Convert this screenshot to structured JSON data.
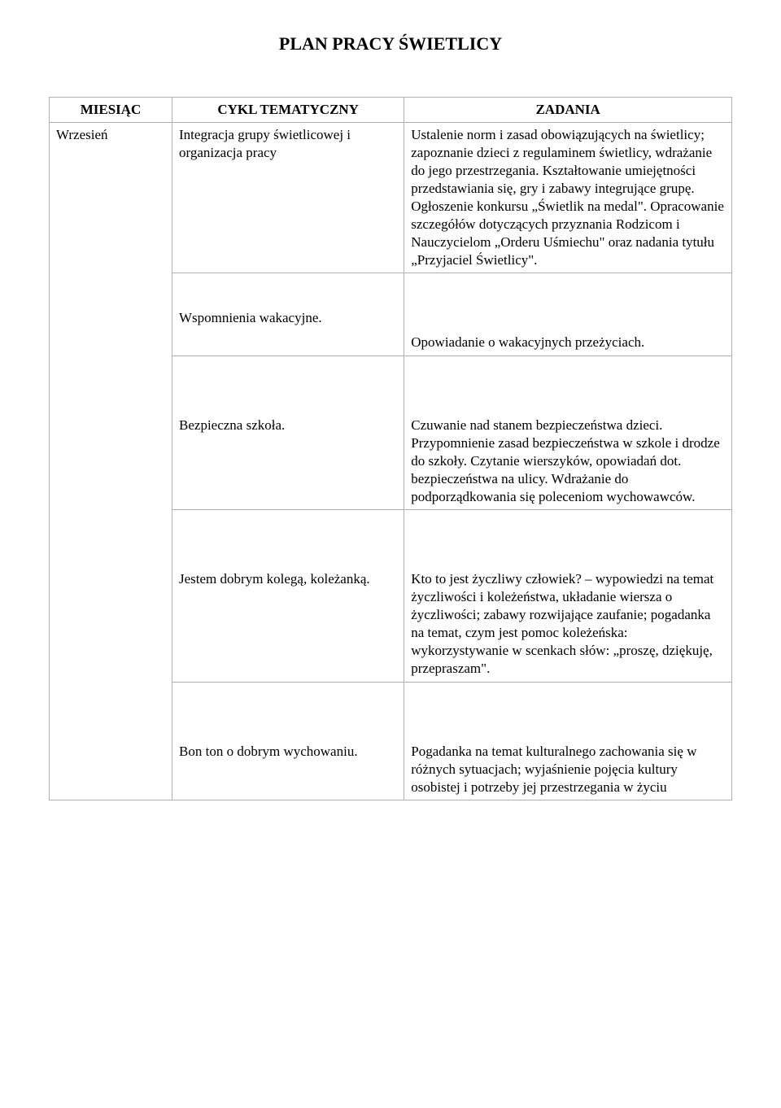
{
  "title": "PLAN PRACY ŚWIETLICY",
  "headers": {
    "col1": "MIESIĄC",
    "col2": "CYKL TEMATYCZNY",
    "col3": "ZADANIA"
  },
  "month": "Wrzesień",
  "rows": [
    {
      "cycle": "Integracja grupy świetlicowej i organizacja pracy",
      "tasks": "Ustalenie norm i zasad obowiązujących na świetlicy; zapoznanie dzieci z regulaminem świetlicy, wdrażanie do jego przestrzegania.  Kształtowanie umiejętności przedstawiania się, gry i zabawy integrujące grupę. Ogłoszenie konkursu „Świetlik na medal\". Opracowanie szczegółów dotyczących przyznania Rodzicom i Nauczycielom „Orderu Uśmiechu\" oraz nadania tytułu „Przyjaciel Świetlicy\"."
    },
    {
      "cycle": "Wspomnienia wakacyjne.",
      "tasks": "Opowiadanie o wakacyjnych przeżyciach."
    },
    {
      "cycle": "Bezpieczna szkoła.",
      "tasks": "Czuwanie nad stanem bezpieczeństwa dzieci. Przypomnienie zasad bezpieczeństwa w szkole i drodze do szkoły. Czytanie wierszyków, opowiadań dot. bezpieczeństwa na ulicy. Wdrażanie do podporządkowania się poleceniom wychowawców."
    },
    {
      "cycle": "Jestem dobrym kolegą, koleżanką.",
      "tasks": "Kto to jest życzliwy człowiek? – wypowiedzi na temat życzliwości i koleżeństwa, układanie wiersza o życzliwości; zabawy rozwijające zaufanie; pogadanka na temat, czym jest pomoc koleżeńska: wykorzystywanie w scenkach słów: „proszę, dziękuję, przepraszam\"."
    },
    {
      "cycle": "Bon ton o dobrym wychowaniu.",
      "tasks": "Pogadanka na temat kulturalnego zachowania się w różnych  sytuacjach; wyjaśnienie pojęcia kultury osobistej i potrzeby jej przestrzegania w życiu"
    }
  ]
}
